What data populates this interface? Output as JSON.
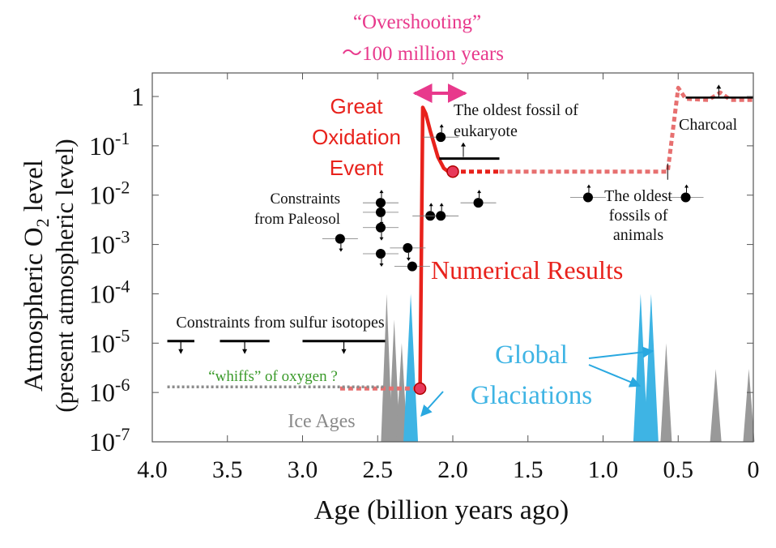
{
  "chart_data": {
    "type": "line",
    "title": "“Overshooting”",
    "subtitle": "～100 million years",
    "ylabel_line1": "Atmospheric O",
    "ylabel_sub": "2",
    "ylabel_line1_tail": " level",
    "ylabel_line2": "(present atmospheric level)",
    "xlabel": "Age (billion years ago)",
    "x_reversed": true,
    "xlim": [
      4.0,
      0
    ],
    "ylim": [
      1e-07,
      3
    ],
    "y_scale": "log",
    "x_ticks": [
      {
        "value": 4.0,
        "label": "4.0"
      },
      {
        "value": 3.5,
        "label": "3.5"
      },
      {
        "value": 3.0,
        "label": "3.0"
      },
      {
        "value": 2.5,
        "label": "2.5"
      },
      {
        "value": 2.0,
        "label": "2.0"
      },
      {
        "value": 1.5,
        "label": "1.5"
      },
      {
        "value": 1.0,
        "label": "1.0"
      },
      {
        "value": 0.5,
        "label": "0.5"
      },
      {
        "value": 0,
        "label": "0"
      }
    ],
    "y_ticks": [
      {
        "value": 1,
        "base": "1",
        "exp": ""
      },
      {
        "value": 0.1,
        "base": "10",
        "exp": "-1"
      },
      {
        "value": 0.01,
        "base": "10",
        "exp": "-2"
      },
      {
        "value": 0.001,
        "base": "10",
        "exp": "-3"
      },
      {
        "value": 0.0001,
        "base": "10",
        "exp": "-4"
      },
      {
        "value": 1e-05,
        "base": "10",
        "exp": "-5"
      },
      {
        "value": 1e-06,
        "base": "10",
        "exp": "-6"
      },
      {
        "value": 1e-07,
        "base": "10",
        "exp": "-7"
      }
    ],
    "series": [
      {
        "name": "Numerical Results",
        "color": "#e8221c",
        "style": "solid",
        "points": [
          [
            2.25,
            1.2e-06
          ],
          [
            2.218,
            1.2e-06
          ],
          [
            2.2,
            0.6
          ],
          [
            2.18,
            0.45
          ],
          [
            2.15,
            0.2
          ],
          [
            2.1,
            0.06
          ],
          [
            2.06,
            0.035
          ],
          [
            2.03,
            0.03
          ],
          [
            2.0,
            0.03
          ]
        ]
      },
      {
        "name": "",
        "color": "#e8221c",
        "style": "dotted",
        "points": [
          [
            2.0,
            0.03
          ],
          [
            1.69,
            0.03
          ]
        ]
      },
      {
        "name": "",
        "color": "#e77070",
        "style": "dotted",
        "points": [
          [
            1.69,
            0.03
          ],
          [
            0.57,
            0.03
          ],
          [
            0.5,
            1.5
          ],
          [
            0.45,
            0.9
          ],
          [
            0.3,
            0.85
          ],
          [
            0.22,
            1.2
          ],
          [
            0.15,
            0.85
          ],
          [
            0,
            0.85
          ]
        ]
      },
      {
        "name": "",
        "color": "#e77070",
        "style": "dotted",
        "points": [
          [
            2.75,
            1.2e-06
          ],
          [
            2.25,
            1.2e-06
          ]
        ]
      },
      {
        "name": "",
        "color": "#8c8c8c",
        "style": "dotted",
        "points": [
          [
            3.9,
            1.3e-06
          ],
          [
            2.45,
            1.3e-06
          ]
        ]
      }
    ],
    "markers": [
      {
        "x": 2.218,
        "y": 1.2e-06,
        "color": "#e8395a"
      },
      {
        "x": 2.0,
        "y": 0.03,
        "color": "#e8395a"
      }
    ],
    "paleosol_points": [
      {
        "x": 2.75,
        "y": 0.0013,
        "arrow": "down"
      },
      {
        "x": 2.48,
        "y": 0.007,
        "arrow": "updown"
      },
      {
        "x": 2.48,
        "y": 0.0045,
        "arrow": "down"
      },
      {
        "x": 2.48,
        "y": 0.0022,
        "arrow": "down"
      },
      {
        "x": 2.48,
        "y": 0.00065,
        "arrow": "down"
      },
      {
        "x": 2.3,
        "y": 0.00085,
        "arrow": "down"
      },
      {
        "x": 2.27,
        "y": 0.00036,
        "arrow": "none"
      },
      {
        "x": 2.15,
        "y": 0.0038,
        "arrow": "up"
      },
      {
        "x": 2.08,
        "y": 0.0038,
        "arrow": "up"
      },
      {
        "x": 2.08,
        "y": 0.15,
        "arrow": "up"
      },
      {
        "x": 1.83,
        "y": 0.007,
        "arrow": "up"
      },
      {
        "x": 1.1,
        "y": 0.009,
        "arrow": "up"
      },
      {
        "x": 0.45,
        "y": 0.009,
        "arrow": "up"
      }
    ],
    "sulfur_constraints": [
      {
        "x_from": 3.9,
        "x_to": 3.72,
        "y": 1.1e-05
      },
      {
        "x_from": 3.55,
        "x_to": 3.22,
        "y": 1.1e-05
      },
      {
        "x_from": 3.0,
        "x_to": 2.45,
        "y": 1.1e-05
      }
    ],
    "ice_ages_gray": [
      {
        "x": 2.44,
        "y": 0.0001
      },
      {
        "x": 2.39,
        "y": 3e-05
      },
      {
        "x": 2.34,
        "y": 1e-05
      },
      {
        "x": 2.29,
        "y": 1e-05
      },
      {
        "x": 0.58,
        "y": 1e-05
      },
      {
        "x": 0.25,
        "y": 3e-06
      },
      {
        "x": 0.03,
        "y": 3e-06
      }
    ],
    "glaciations_blue": [
      {
        "x": 2.28,
        "y": 0.0001
      },
      {
        "x": 0.75,
        "y": 0.0001
      },
      {
        "x": 0.68,
        "y": 0.0001
      }
    ],
    "colors": {
      "numerical": "#e8221c",
      "numerical_dotted": "#e77070",
      "overshoot": "#e8398c",
      "glaciation": "#3eb4e4",
      "ice_age": "#999999",
      "whiffs": "#3a9a2a",
      "whiffs_line": "#8c8c8c"
    },
    "annotations": {
      "great_oxidation": [
        "Great",
        "Oxidation",
        "Event"
      ],
      "numerical_results": "Numerical Results",
      "oldest_eukaryote": [
        "The oldest fossil of",
        "eukaryote"
      ],
      "charcoal": "Charcoal",
      "paleosol": [
        "Constraints",
        "from Paleosol"
      ],
      "oldest_animals": [
        "The oldest",
        "fossils of",
        "animals"
      ],
      "sulfur": "Constraints from sulfur isotopes",
      "whiffs": "“whiffs” of oxygen ?",
      "ice_ages": "Ice Ages",
      "global_glaciations": [
        "Global",
        "Glaciations"
      ]
    }
  }
}
